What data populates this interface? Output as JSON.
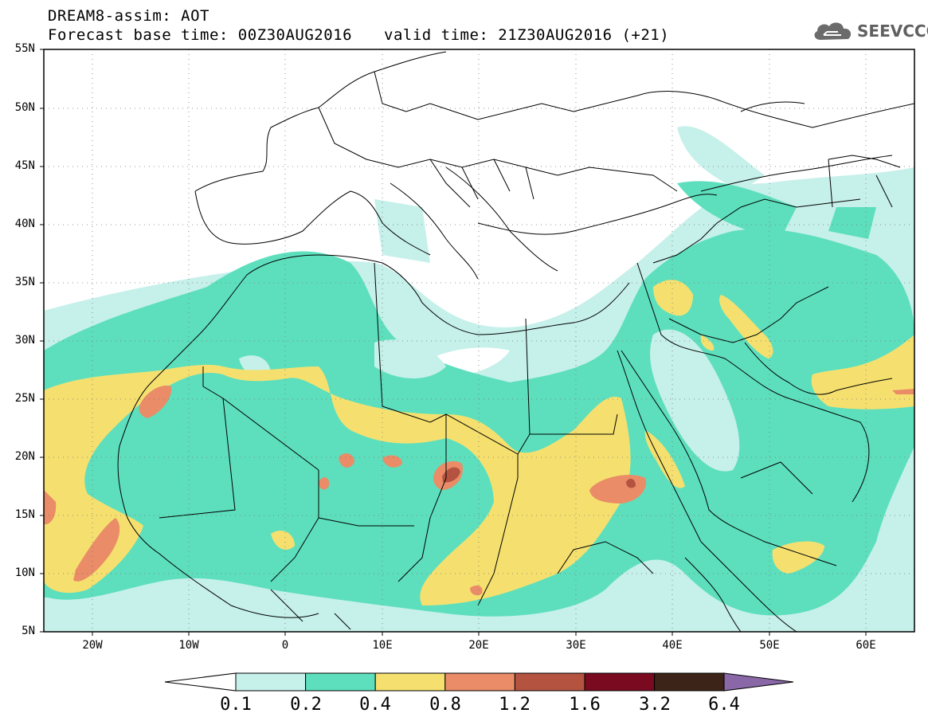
{
  "header": {
    "title": "DREAM8-assim: AOT",
    "base_time": "Forecast base time: 00Z30AUG2016",
    "valid_time": "valid time: 21Z30AUG2016 (+21)"
  },
  "logo": {
    "text": "SEEVCCC",
    "icon": "cloud-icon"
  },
  "map": {
    "lat_labels": [
      "55N",
      "50N",
      "45N",
      "40N",
      "35N",
      "30N",
      "25N",
      "20N",
      "15N",
      "10N",
      "5N"
    ],
    "lon_labels": [
      "20W",
      "10W",
      "0",
      "10E",
      "20E",
      "30E",
      "40E",
      "50E",
      "60E"
    ]
  },
  "colorbar": {
    "labels": [
      "0.1",
      "0.2",
      "0.4",
      "0.8",
      "1.2",
      "1.6",
      "3.2",
      "6.4"
    ],
    "colors": [
      "#ffffff",
      "#c6f0ea",
      "#5ddfbd",
      "#f5e06f",
      "#e98c67",
      "#b4533f",
      "#7a0a20",
      "#3d2418",
      "#8a68a8"
    ]
  }
}
